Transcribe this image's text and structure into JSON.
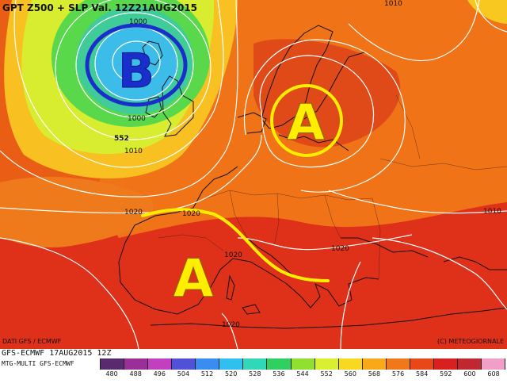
{
  "map": {
    "title": "GPT Z500 + SLP Val. 12Z21AUG2015",
    "pressure_systems": [
      {
        "letter": "B",
        "meaning": "low",
        "color": "#1a2ecc"
      },
      {
        "letter": "A",
        "meaning": "high",
        "color": "#ffee00"
      },
      {
        "letter": "A",
        "meaning": "high",
        "color": "#ffee00"
      }
    ],
    "isobar_labels": [
      "1000",
      "1000",
      "1010",
      "1010",
      "1020",
      "1020",
      "1020",
      "1020",
      "1020",
      "1010"
    ],
    "geopotential_labels": [
      "552"
    ],
    "line_colors": {
      "isobars": "#ffffff",
      "coast": "#111111",
      "ridge_axis": "#ffee00"
    }
  },
  "footer": {
    "run": "GFS-ECMWF 17AUG2015 12Z",
    "model": "MTG-MULTI GFS-ECMWF",
    "source": "DATI GFS / ECMWF",
    "copyright": "(C) METEOGIORNALE"
  },
  "legend": {
    "values": [
      "480",
      "488",
      "496",
      "504",
      "512",
      "520",
      "528",
      "536",
      "544",
      "552",
      "560",
      "568",
      "576",
      "584",
      "592",
      "600",
      "608"
    ],
    "colors": [
      "#5a2a6e",
      "#9a2f9a",
      "#c040c0",
      "#5050d8",
      "#3a8cf0",
      "#30c0f0",
      "#30d8b8",
      "#30d060",
      "#90e030",
      "#d8f030",
      "#f8d820",
      "#f8a818",
      "#f07818",
      "#e84818",
      "#d82020",
      "#c02830",
      "#f0a0c8"
    ]
  }
}
